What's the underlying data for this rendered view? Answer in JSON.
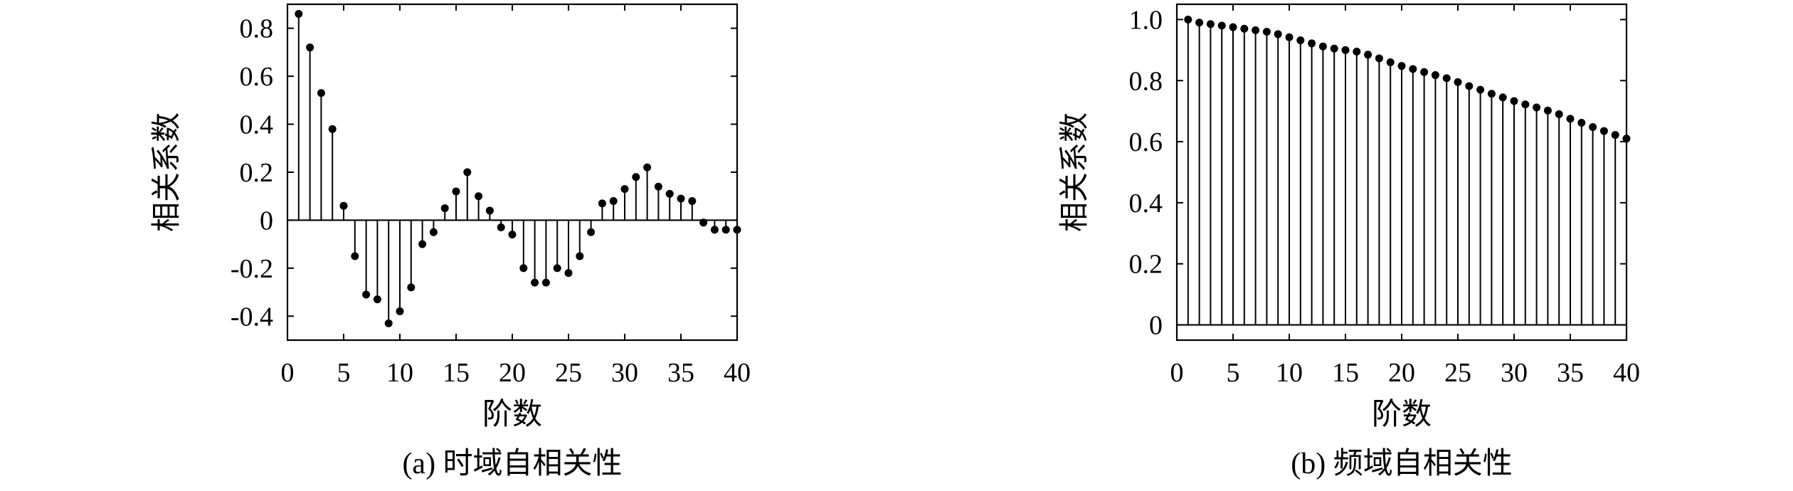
{
  "chart_data": [
    {
      "type": "stem",
      "caption": "(a) 时域自相关性",
      "xlabel": "阶数",
      "ylabel": "相关系数",
      "xlim": [
        0,
        40
      ],
      "ylim": [
        -0.5,
        0.9
      ],
      "xticks": [
        "0",
        "5",
        "10",
        "15",
        "20",
        "25",
        "30",
        "35",
        "40"
      ],
      "yticks": [
        "-0.4",
        "-0.2",
        "0",
        "0.2",
        "0.4",
        "0.6",
        "0.8"
      ],
      "x": [
        1,
        2,
        3,
        4,
        5,
        6,
        7,
        8,
        9,
        10,
        11,
        12,
        13,
        14,
        15,
        16,
        17,
        18,
        19,
        20,
        21,
        22,
        23,
        24,
        25,
        26,
        27,
        28,
        29,
        30,
        31,
        32,
        33,
        34,
        35,
        36,
        37,
        38,
        39,
        40
      ],
      "values": [
        0.86,
        0.72,
        0.53,
        0.38,
        0.06,
        -0.15,
        -0.31,
        -0.33,
        -0.43,
        -0.38,
        -0.28,
        -0.1,
        -0.05,
        0.05,
        0.12,
        0.2,
        0.1,
        0.04,
        -0.03,
        -0.06,
        -0.2,
        -0.26,
        -0.26,
        -0.2,
        -0.22,
        -0.15,
        -0.05,
        0.07,
        0.08,
        0.13,
        0.18,
        0.22,
        0.14,
        0.11,
        0.09,
        0.08,
        -0.01,
        -0.04,
        -0.04,
        -0.04
      ],
      "grid": false
    },
    {
      "type": "stem",
      "caption": "(b) 频域自相关性",
      "xlabel": "阶数",
      "ylabel": "相关系数",
      "xlim": [
        0,
        40
      ],
      "ylim": [
        -0.05,
        1.05
      ],
      "xticks": [
        "0",
        "5",
        "10",
        "15",
        "20",
        "25",
        "30",
        "35",
        "40"
      ],
      "yticks": [
        "0",
        "0.2",
        "0.4",
        "0.6",
        "0.8",
        "1.0"
      ],
      "x": [
        1,
        2,
        3,
        4,
        5,
        6,
        7,
        8,
        9,
        10,
        11,
        12,
        13,
        14,
        15,
        16,
        17,
        18,
        19,
        20,
        21,
        22,
        23,
        24,
        25,
        26,
        27,
        28,
        29,
        30,
        31,
        32,
        33,
        34,
        35,
        36,
        37,
        38,
        39,
        40
      ],
      "values": [
        1.0,
        0.99,
        0.985,
        0.98,
        0.975,
        0.97,
        0.965,
        0.96,
        0.952,
        0.942,
        0.932,
        0.922,
        0.912,
        0.905,
        0.9,
        0.895,
        0.885,
        0.873,
        0.86,
        0.848,
        0.838,
        0.828,
        0.818,
        0.808,
        0.795,
        0.782,
        0.77,
        0.757,
        0.745,
        0.733,
        0.722,
        0.712,
        0.702,
        0.69,
        0.675,
        0.662,
        0.648,
        0.635,
        0.622,
        0.61
      ],
      "grid": false
    }
  ]
}
